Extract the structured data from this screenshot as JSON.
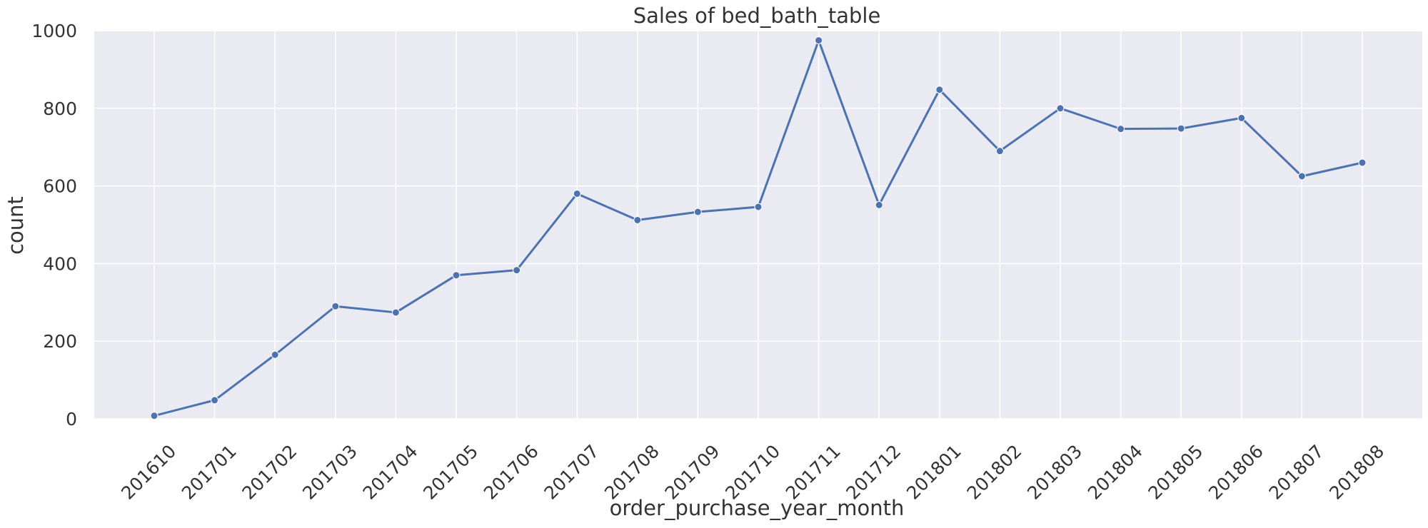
{
  "chart_data": {
    "type": "line",
    "title": "Sales of bed_bath_table",
    "xlabel": "order_purchase_year_month",
    "ylabel": "count",
    "ylim": [
      0,
      1000
    ],
    "yticks": [
      "0",
      "200",
      "400",
      "600",
      "800",
      "1000"
    ],
    "grid": true,
    "legend": "none",
    "colors": {
      "line": "#4c72b0",
      "plot_bg": "#eaeaf2",
      "grid": "#ffffff",
      "text": "#333333"
    },
    "categories": [
      "201610",
      "201701",
      "201702",
      "201703",
      "201704",
      "201705",
      "201706",
      "201707",
      "201708",
      "201709",
      "201710",
      "201711",
      "201712",
      "201801",
      "201802",
      "201803",
      "201804",
      "201805",
      "201806",
      "201807",
      "201808"
    ],
    "series": [
      {
        "values": [
          8,
          48,
          165,
          290,
          274,
          370,
          383,
          580,
          512,
          533,
          546,
          975,
          551,
          848,
          690,
          800,
          747,
          748,
          775,
          625,
          660
        ]
      }
    ]
  }
}
